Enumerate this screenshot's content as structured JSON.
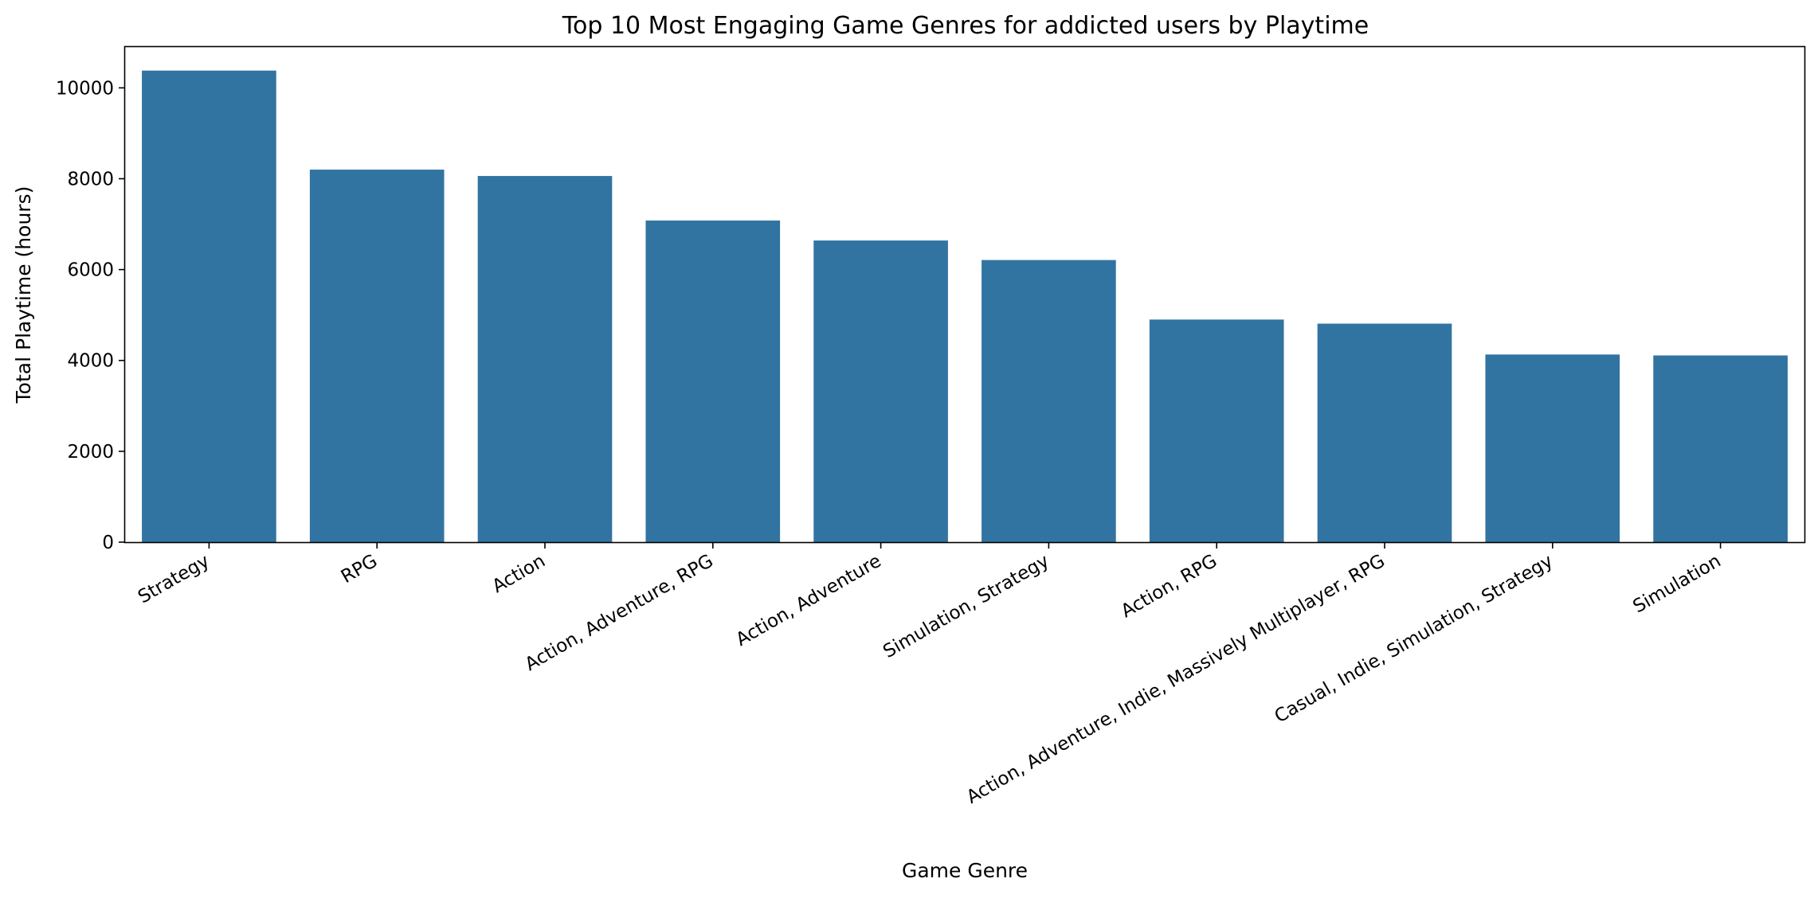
{
  "chart_data": {
    "type": "bar",
    "title": "Top 10 Most Engaging Game Genres for addicted users by Playtime",
    "xlabel": "Game Genre",
    "ylabel": "Total Playtime (hours)",
    "categories": [
      "Strategy",
      "RPG",
      "Action",
      "Action, Adventure, RPG",
      "Action, Adventure",
      "Simulation, Strategy",
      "Action, RPG",
      "Action, Adventure, Indie, Massively Multiplayer, RPG",
      "Casual, Indie, Simulation, Strategy",
      "Simulation"
    ],
    "values": [
      10380,
      8200,
      8060,
      7080,
      6640,
      6210,
      4900,
      4810,
      4130,
      4110
    ],
    "ylim": [
      0,
      10900
    ],
    "yticks": [
      0,
      2000,
      4000,
      6000,
      8000,
      10000
    ],
    "grid": false,
    "legend": "none",
    "bar_color": "#3274a1"
  }
}
